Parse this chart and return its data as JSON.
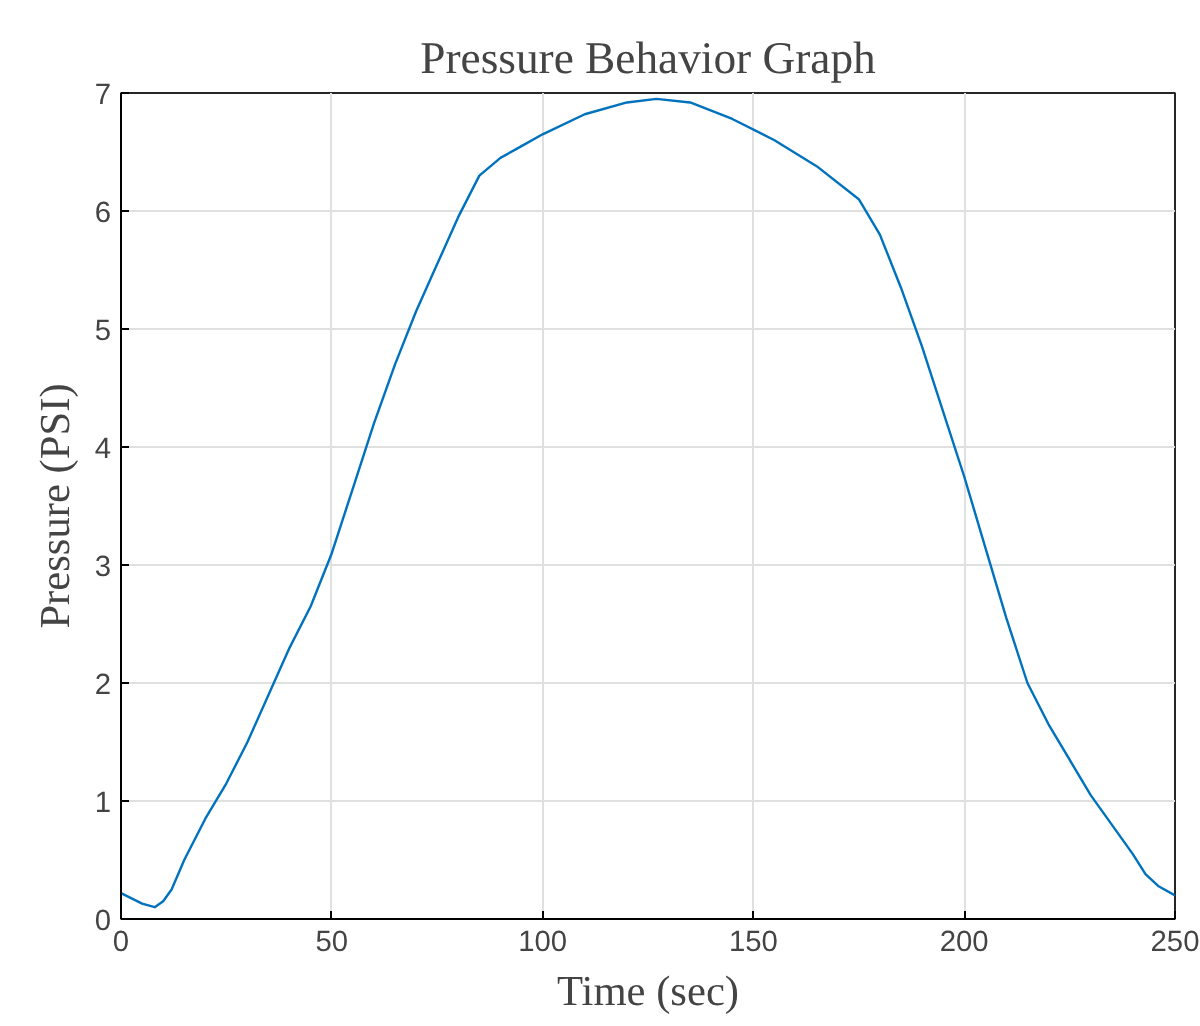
{
  "chart_data": {
    "type": "line",
    "title": "Pressure Behavior Graph",
    "xlabel": "Time (sec)",
    "ylabel": "Pressure (PSI)",
    "x": [
      0,
      5,
      8,
      10,
      12,
      15,
      20,
      25,
      30,
      35,
      40,
      45,
      50,
      55,
      60,
      65,
      70,
      75,
      80,
      85,
      90,
      95,
      100,
      110,
      120,
      127,
      135,
      145,
      155,
      165,
      175,
      180,
      185,
      190,
      195,
      200,
      205,
      210,
      215,
      220,
      225,
      230,
      235,
      240,
      243,
      246,
      250
    ],
    "series": [
      {
        "color": "#0072bd",
        "values": [
          0.22,
          0.13,
          0.1,
          0.15,
          0.25,
          0.5,
          0.85,
          1.15,
          1.5,
          1.9,
          2.3,
          2.65,
          3.1,
          3.65,
          4.2,
          4.7,
          5.15,
          5.55,
          5.95,
          6.3,
          6.45,
          6.55,
          6.65,
          6.82,
          6.92,
          6.95,
          6.92,
          6.78,
          6.6,
          6.38,
          6.1,
          5.8,
          5.35,
          4.85,
          4.3,
          3.75,
          3.15,
          2.55,
          2.0,
          1.65,
          1.35,
          1.05,
          0.8,
          0.55,
          0.38,
          0.28,
          0.2
        ]
      }
    ],
    "xlim": [
      0,
      250
    ],
    "ylim": [
      0,
      7
    ],
    "xticks": [
      0,
      50,
      100,
      150,
      200,
      250
    ],
    "yticks": [
      0,
      1,
      2,
      3,
      4,
      5,
      6,
      7
    ],
    "grid": true
  }
}
